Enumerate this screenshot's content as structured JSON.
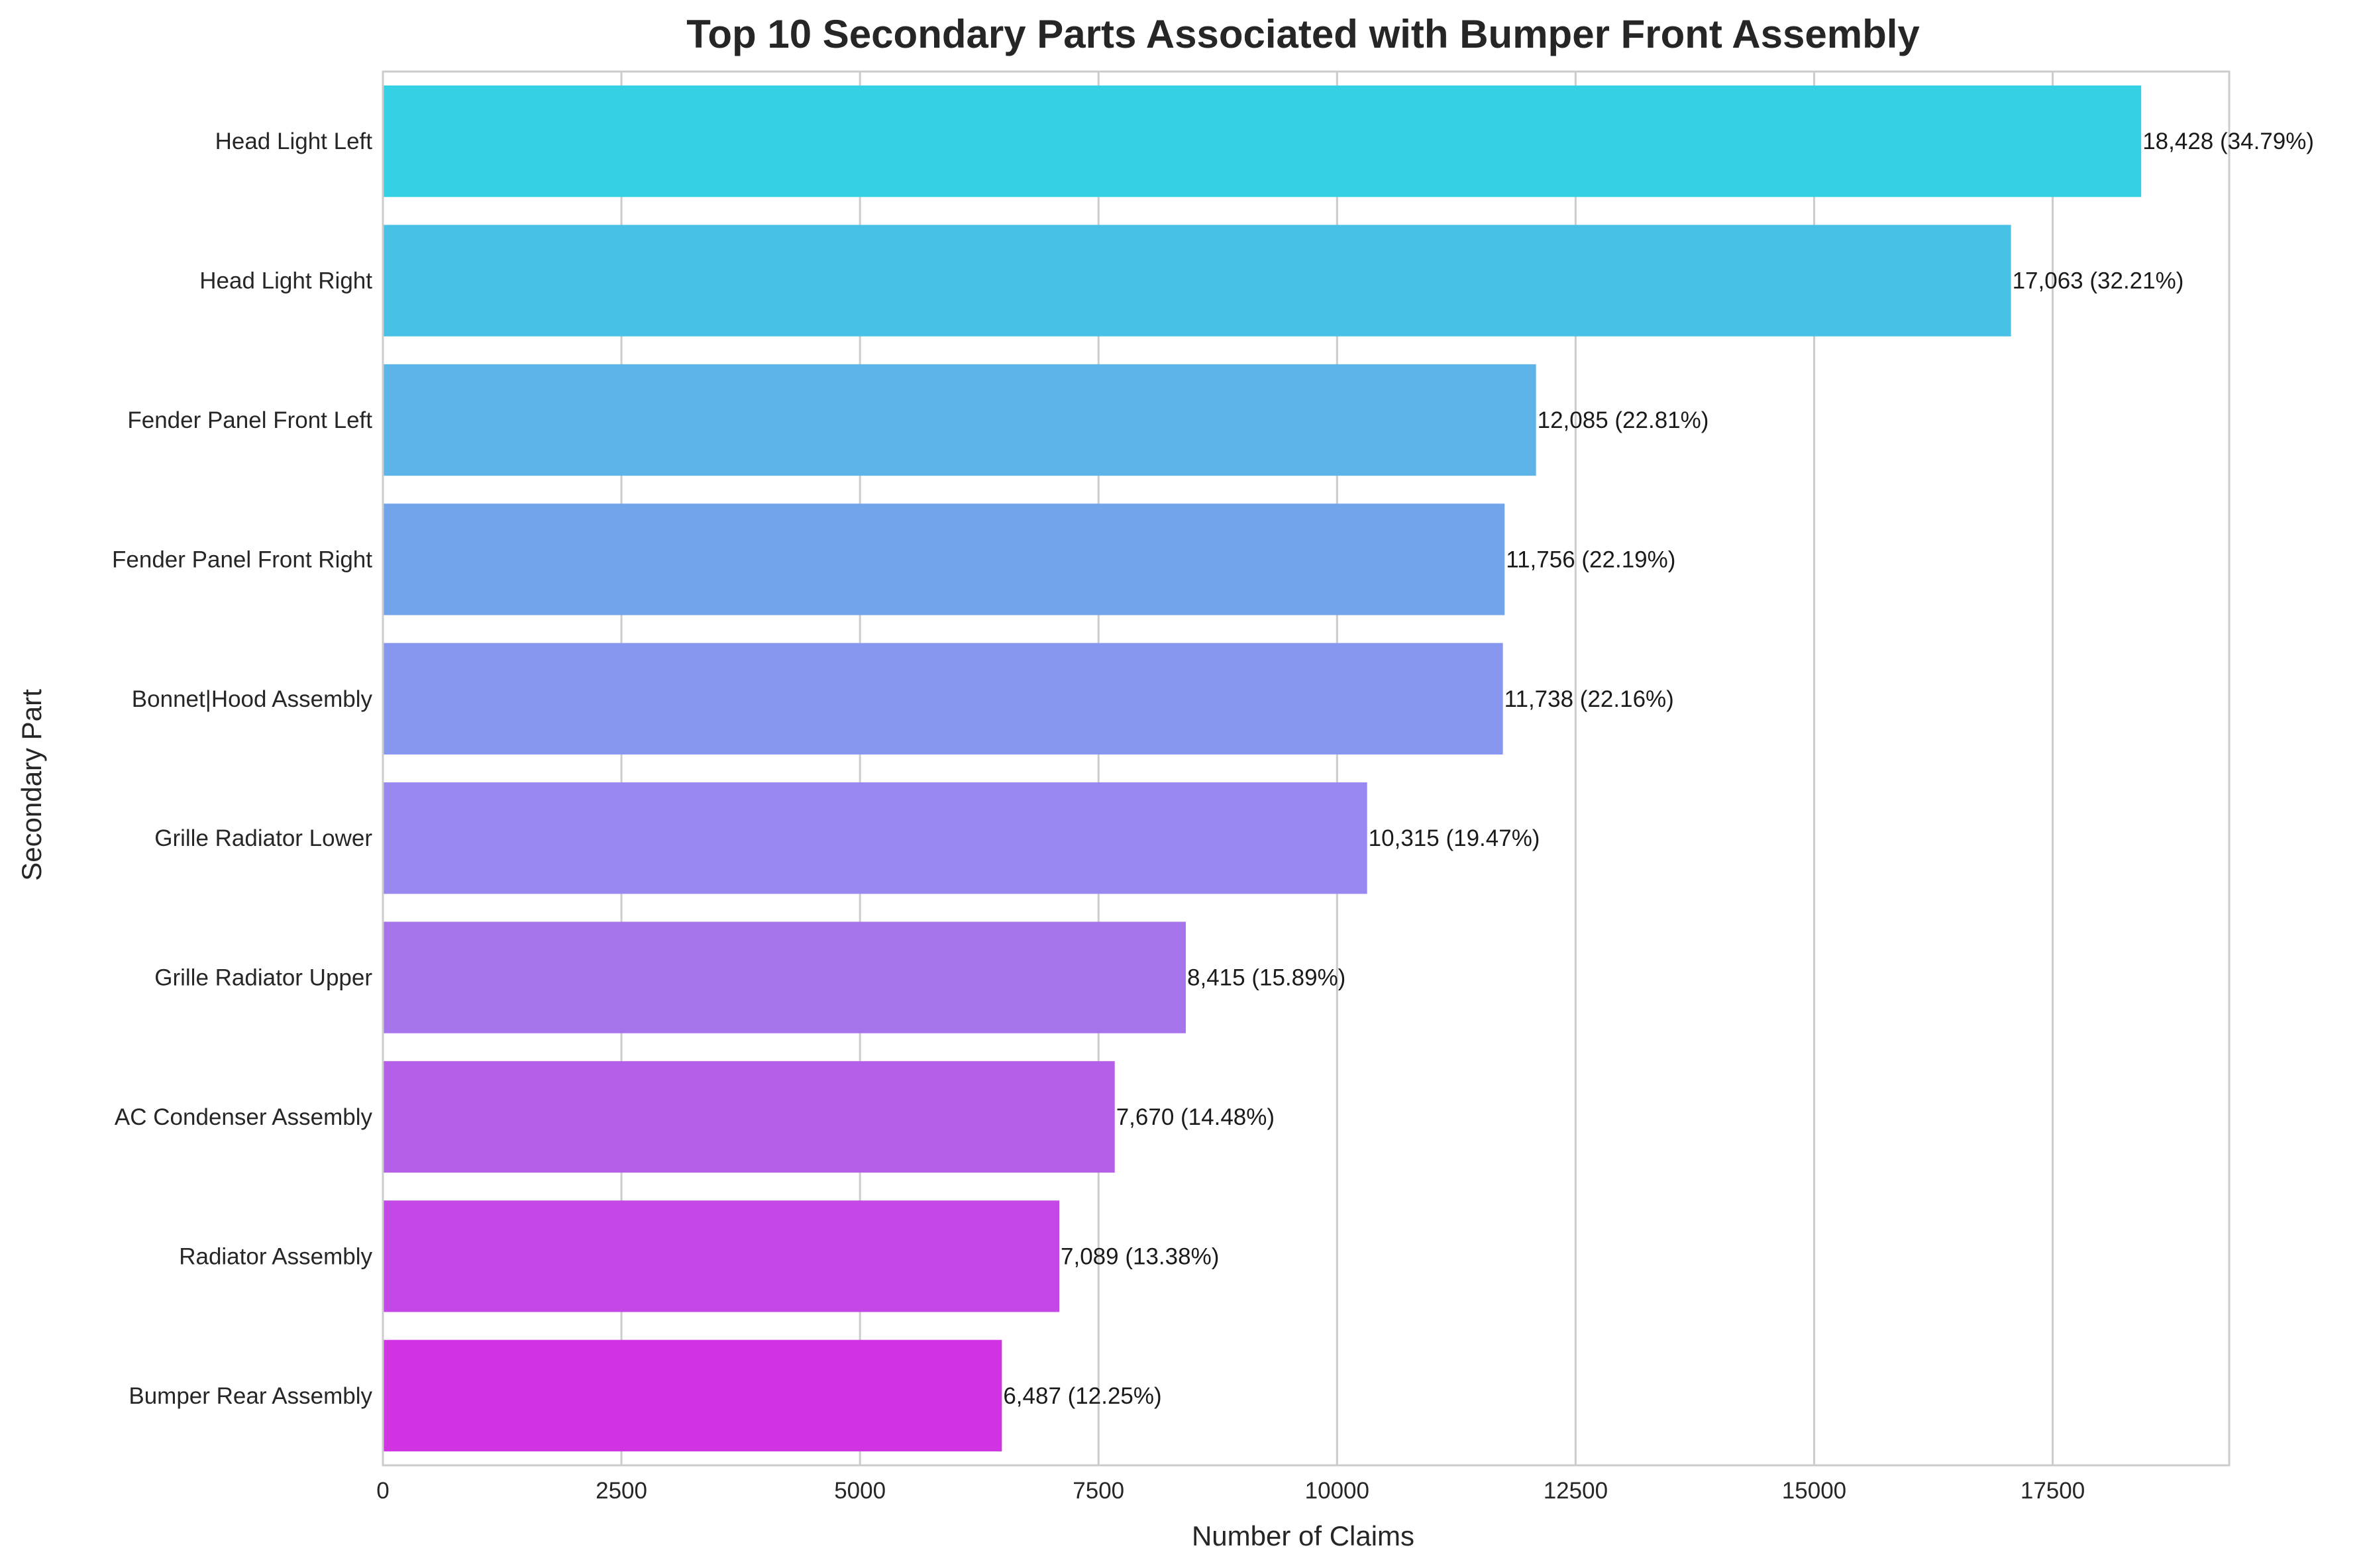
{
  "chart_data": {
    "type": "bar",
    "orientation": "horizontal",
    "title": "Top 10 Secondary Parts Associated with Bumper Front Assembly",
    "xlabel": "Number of Claims",
    "ylabel": "Secondary Part",
    "xlim": [
      0,
      19350
    ],
    "xticks": [
      0,
      2500,
      5000,
      7500,
      10000,
      12500,
      15000,
      17500
    ],
    "grid": true,
    "categories": [
      "Head Light Left",
      "Head Light Right",
      "Fender Panel Front Left",
      "Fender Panel Front Right",
      "Bonnet|Hood Assembly",
      "Grille Radiator Lower",
      "Grille Radiator Upper",
      "AC Condenser Assembly",
      "Radiator Assembly",
      "Bumper Rear Assembly"
    ],
    "values": [
      18428,
      17063,
      12085,
      11756,
      11738,
      10315,
      8415,
      7670,
      7089,
      6487
    ],
    "data_labels": [
      "18,428 (34.79%)",
      "17,063 (32.21%)",
      "12,085 (22.81%)",
      "11,756 (22.19%)",
      "11,738 (22.16%)",
      "10,315 (19.47%)",
      "8,415 (15.89%)",
      "7,670 (14.48%)",
      "7,089 (13.38%)",
      "6,487 (12.25%)"
    ],
    "colors": [
      "#33d1e3",
      "#47c2e6",
      "#5db4e9",
      "#72a4ec",
      "#8797ef",
      "#9888f0",
      "#a674eb",
      "#b45fe8",
      "#c348e6",
      "#d134e3"
    ]
  }
}
